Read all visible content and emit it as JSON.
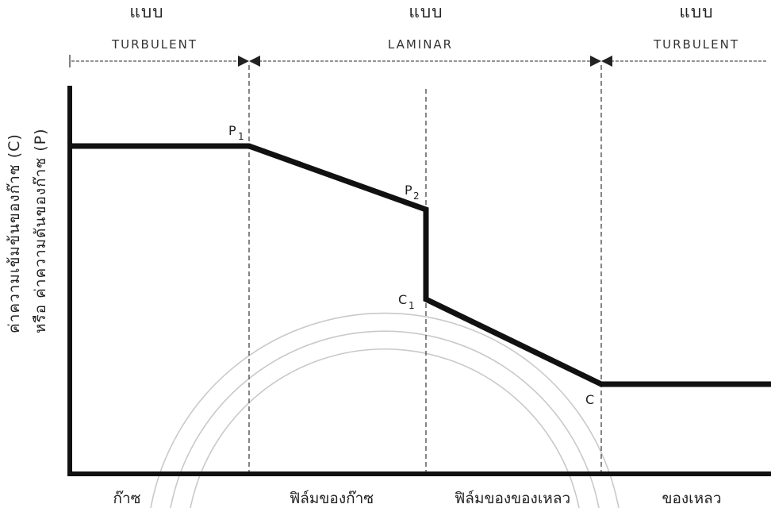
{
  "regions": [
    {
      "label": "แบบ",
      "flow": "TURBULENT"
    },
    {
      "label": "แบบ",
      "flow": "LAMINAR"
    },
    {
      "label": "แบบ",
      "flow": "TURBULENT"
    }
  ],
  "points": {
    "p1": {
      "letter": "P",
      "sub": "1"
    },
    "p2": {
      "letter": "P",
      "sub": "2"
    },
    "c1": {
      "letter": "C",
      "sub": "1"
    },
    "c": {
      "letter": "C",
      "sub": ""
    }
  },
  "y_axis": {
    "line1": "ค่าความเข้มข้นของก๊าซ (C)",
    "line2": "หรือ ค่าความดันของก๊าซ (P)"
  },
  "zones": [
    "ก๊าซ",
    "ฟิล์มของก๊าซ",
    "ฟิล์มของของเหลว",
    "ของเหลว"
  ]
}
